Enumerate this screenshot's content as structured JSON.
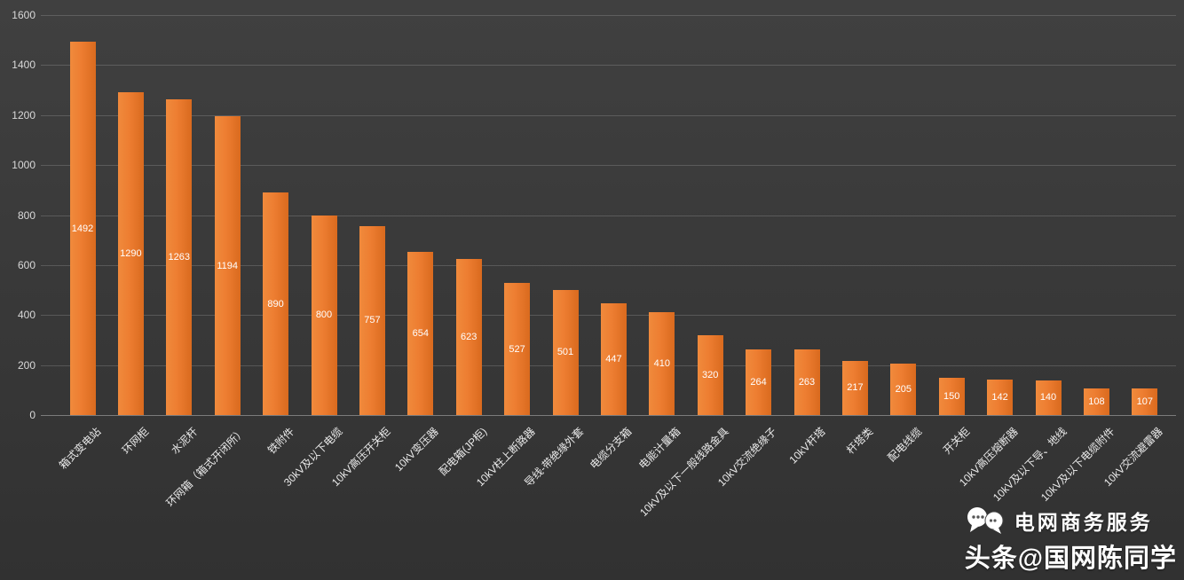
{
  "chart_data": {
    "type": "bar",
    "title": "",
    "xlabel": "",
    "ylabel": "",
    "categories": [
      "箱式变电站",
      "环网柜",
      "水泥杆",
      "环网箱（箱式开闭所）",
      "铁附件",
      "30kV及以下电缆",
      "10kV高压开关柜",
      "10kV变压器",
      "配电箱(JP柜)",
      "10kV柱上断路器",
      "导线-带绝缘外套",
      "电缆分支箱",
      "电能计量箱",
      "10kV及以下一般线路金具",
      "10kV交流绝缘子",
      "10kV杆塔",
      "杆塔类",
      "配电线缆",
      "开关柜",
      "10kV高压熔断器",
      "10kV及以下导、地线",
      "10kV及以下电缆附件",
      "10kV交流避雷器"
    ],
    "values": [
      1492,
      1290,
      1263,
      1194,
      890,
      800,
      757,
      654,
      623,
      527,
      501,
      447,
      410,
      320,
      264,
      263,
      217,
      205,
      150,
      142,
      140,
      108,
      107
    ],
    "ylim": [
      0,
      1600
    ],
    "ytick_step": 200,
    "ytick_labels": [
      "0",
      "200",
      "400",
      "600",
      "800",
      "1000",
      "1200",
      "1400",
      "1600"
    ],
    "grid": true,
    "legend": "none",
    "bar_color": "#ED7D31",
    "value_labels": "inside-center"
  },
  "watermark": {
    "line1": "电网商务服务",
    "line2": "头条@国网陈同学"
  },
  "colors": {
    "background": "#383838",
    "bar": "#ED7D31",
    "axis_text": "#d9d9d9",
    "value_text": "#ffffff",
    "gridline": "rgba(255,255,255,0.16)"
  }
}
